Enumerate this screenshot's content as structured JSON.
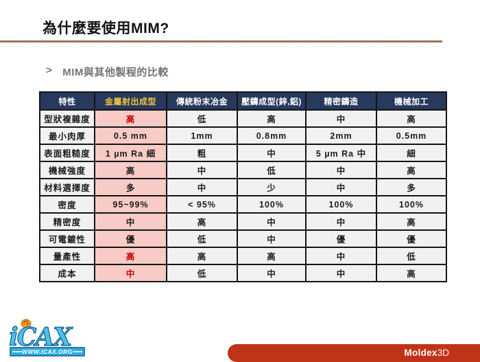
{
  "slide": {
    "title": "為什麼要使用MIM?",
    "bullet_marker": ">",
    "subtitle": "MIM與其他製程的比較"
  },
  "table": {
    "headers": [
      "特性",
      "金屬射出成型",
      "傳統粉末冶金",
      "壓鑄成型(鋅,鋁)",
      "精密鑄造",
      "機械加工"
    ],
    "rows": [
      {
        "feature": "型狀複雜度",
        "values": [
          "高",
          "低",
          "高",
          "中",
          "高"
        ],
        "mim_red": true
      },
      {
        "feature": "最小肉厚",
        "values": [
          "0.5 mm",
          "1mm",
          "0.8mm",
          "2mm",
          "0.5mm"
        ],
        "mim_red": false
      },
      {
        "feature": "表面粗糙度",
        "values": [
          "1 µm Ra 細",
          "粗",
          "中",
          "5 µm Ra 中",
          "細"
        ],
        "mim_red": false
      },
      {
        "feature": "機械強度",
        "values": [
          "高",
          "中",
          "低",
          "中",
          "高"
        ],
        "mim_red": false
      },
      {
        "feature": "材料選擇度",
        "values": [
          "多",
          "中",
          "少",
          "中",
          "多"
        ],
        "mim_red": false
      },
      {
        "feature": "密度",
        "values": [
          "95~99%",
          "< 95%",
          "100%",
          "100%",
          "100%"
        ],
        "mim_red": false
      },
      {
        "feature": "精密度",
        "values": [
          "中",
          "高",
          "中",
          "中",
          "高"
        ],
        "mim_red": false
      },
      {
        "feature": "可電鍍性",
        "values": [
          "優",
          "低",
          "中",
          "優",
          "優"
        ],
        "mim_red": false
      },
      {
        "feature": "量產性",
        "values": [
          "高",
          "高",
          "高",
          "中",
          "低"
        ],
        "mim_red": true
      },
      {
        "feature": "成本",
        "values": [
          "中",
          "低",
          "中",
          "中",
          "高"
        ],
        "mim_red": true
      }
    ]
  },
  "footer": {
    "logo_text": "iCAX",
    "logo_url": "WWW.ICAX.ORG",
    "brand_name": "Moldex",
    "brand_suffix": "3D"
  },
  "colors": {
    "header_navy": "#27395d",
    "header_gold": "#eec13f",
    "mim_pink": "#f8cbc6",
    "cell_gray": "#f1f1f1",
    "highlight_red": "#c00000",
    "rule_brown": "#8a6248",
    "footer_red": "#bf3418",
    "subtitle_gray": "#737373"
  }
}
